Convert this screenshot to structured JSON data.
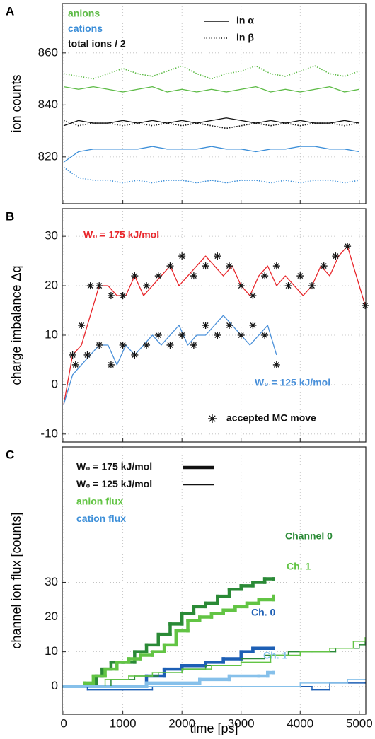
{
  "chart_data": [
    {
      "type": "line",
      "label": "A",
      "ylabel": "ion counts",
      "xlim": [
        -25,
        5110
      ],
      "ylim": [
        802,
        879
      ],
      "xticks": [
        0,
        1000,
        2000,
        3000,
        4000,
        5000
      ],
      "yticks": [
        820,
        840,
        860
      ],
      "show_xtick_labels": false,
      "grid": true,
      "x": [
        0,
        250,
        500,
        750,
        1000,
        1250,
        1500,
        1750,
        2000,
        2250,
        2500,
        2750,
        3000,
        3250,
        3500,
        3750,
        4000,
        4250,
        4500,
        4750,
        5000
      ],
      "series": [
        {
          "color": "#5dbb46",
          "style": "solid",
          "values": [
            847,
            846,
            847,
            846,
            845,
            846,
            847,
            845,
            846,
            845,
            846,
            845,
            846,
            847,
            845,
            846,
            845,
            846,
            847,
            845,
            846
          ]
        },
        {
          "color": "#5dbb46",
          "style": "dotted",
          "values": [
            852,
            851,
            850,
            852,
            854,
            852,
            851,
            853,
            855,
            852,
            850,
            852,
            853,
            855,
            852,
            851,
            853,
            855,
            852,
            851,
            853
          ]
        },
        {
          "color": "#3b8ed8",
          "style": "solid",
          "values": [
            818,
            822,
            823,
            823,
            823,
            823,
            824,
            823,
            823,
            823,
            824,
            823,
            823,
            822,
            823,
            823,
            824,
            824,
            823,
            823,
            822
          ]
        },
        {
          "color": "#3b8ed8",
          "style": "dotted",
          "values": [
            816,
            812,
            811,
            811,
            810,
            811,
            810,
            811,
            811,
            810,
            811,
            810,
            811,
            811,
            810,
            811,
            810,
            811,
            811,
            810,
            811
          ]
        },
        {
          "color": "#111111",
          "style": "solid",
          "values": [
            832,
            834,
            833,
            833,
            834,
            833,
            834,
            833,
            834,
            833,
            834,
            835,
            834,
            833,
            834,
            833,
            834,
            833,
            833,
            834,
            833
          ]
        },
        {
          "color": "#111111",
          "style": "dotted",
          "values": [
            834,
            832,
            833,
            833,
            832,
            833,
            832,
            833,
            832,
            833,
            832,
            831,
            832,
            833,
            832,
            833,
            832,
            833,
            833,
            832,
            833
          ]
        }
      ],
      "legend": [
        {
          "label": "anions",
          "color": "#5dbb46"
        },
        {
          "label": "cations",
          "color": "#3b8ed8"
        },
        {
          "label": "total ions / 2",
          "color": "#111111"
        }
      ],
      "style_legend": [
        {
          "label": "in α",
          "style": "solid"
        },
        {
          "label": "in β",
          "style": "dotted"
        }
      ]
    },
    {
      "type": "line",
      "label": "B",
      "ylabel": "charge imbalance Δq",
      "xlim": [
        -25,
        5110
      ],
      "ylim": [
        -11.6,
        35.6
      ],
      "xticks": [
        0,
        1000,
        2000,
        3000,
        4000,
        5000
      ],
      "yticks": [
        -10,
        0,
        10,
        20,
        30
      ],
      "show_xtick_labels": false,
      "grid": true,
      "series": [
        {
          "name": "W₀ = 175 kJ/mol",
          "color": "#e8262b",
          "style": "solid",
          "x": [
            0,
            150,
            300,
            450,
            600,
            750,
            900,
            1050,
            1200,
            1350,
            1500,
            1650,
            1800,
            1950,
            2100,
            2250,
            2400,
            2550,
            2700,
            2850,
            3000,
            3150,
            3300,
            3450,
            3600,
            3750,
            3900,
            4050,
            4200,
            4350,
            4500,
            4650,
            4800,
            4950,
            5100
          ],
          "values": [
            -4,
            6,
            8,
            14,
            20,
            20,
            18,
            18,
            22,
            18,
            20,
            22,
            24,
            20,
            22,
            24,
            26,
            24,
            22,
            24,
            20,
            18,
            22,
            24,
            20,
            22,
            20,
            18,
            20,
            24,
            22,
            26,
            28,
            22,
            16
          ]
        },
        {
          "name": "W₀ = 125 kJ/mol",
          "color": "#4a90d9",
          "style": "solid",
          "x": [
            0,
            150,
            300,
            450,
            600,
            750,
            900,
            1050,
            1200,
            1350,
            1500,
            1650,
            1800,
            1950,
            2100,
            2250,
            2400,
            2550,
            2700,
            2850,
            3000,
            3150,
            3300,
            3450,
            3600
          ],
          "values": [
            -4,
            2,
            4,
            6,
            8,
            8,
            4,
            8,
            6,
            8,
            10,
            8,
            10,
            12,
            8,
            10,
            10,
            12,
            14,
            12,
            10,
            8,
            10,
            12,
            6
          ]
        },
        {
          "name": "accepted MC move",
          "type": "scatter",
          "color": "#111111",
          "x": [
            150,
            300,
            450,
            600,
            800,
            1000,
            1200,
            1400,
            1600,
            1800,
            2000,
            2200,
            2400,
            2600,
            2800,
            3000,
            3200,
            3400,
            3600,
            3800,
            4000,
            4200,
            4400,
            4600,
            4800,
            5100,
            200,
            400,
            600,
            800,
            1000,
            1200,
            1400,
            1600,
            1800,
            2000,
            2200,
            2400,
            2600,
            2800,
            3000,
            3200,
            3400,
            3600
          ],
          "values": [
            6,
            12,
            20,
            20,
            18,
            18,
            22,
            20,
            22,
            24,
            26,
            22,
            24,
            26,
            24,
            20,
            18,
            22,
            24,
            20,
            22,
            20,
            24,
            26,
            28,
            16,
            4,
            6,
            8,
            4,
            8,
            6,
            8,
            10,
            8,
            10,
            8,
            12,
            10,
            12,
            10,
            12,
            10,
            4
          ]
        }
      ]
    },
    {
      "type": "line",
      "step": true,
      "label": "C",
      "ylabel": "channel ion flux [counts]",
      "xlabel": "time [ps]",
      "xlim": [
        -25,
        5110
      ],
      "ylim": [
        -8,
        69
      ],
      "xticks": [
        0,
        1000,
        2000,
        3000,
        4000,
        5000
      ],
      "yticks": [
        0,
        10,
        20,
        30
      ],
      "show_xtick_labels": true,
      "grid": true,
      "series": [
        {
          "color": "#2a8a36",
          "weight": "thick",
          "x": [
            0,
            400,
            550,
            650,
            800,
            1000,
            1200,
            1400,
            1600,
            1800,
            2000,
            2200,
            2400,
            2600,
            2800,
            3000,
            3200,
            3400,
            3550
          ],
          "values": [
            0,
            0,
            3,
            5,
            7,
            7,
            10,
            12,
            15,
            18,
            21,
            23,
            24,
            26,
            28,
            29,
            30,
            31,
            31
          ]
        },
        {
          "color": "#62c444",
          "weight": "thick",
          "x": [
            0,
            350,
            500,
            700,
            900,
            1100,
            1300,
            1500,
            1700,
            1900,
            2100,
            2300,
            2500,
            2700,
            2900,
            3100,
            3300,
            3550
          ],
          "values": [
            0,
            1,
            3,
            5,
            7,
            8,
            9,
            10,
            12,
            16,
            19,
            20,
            21,
            22,
            23,
            24,
            25,
            26
          ]
        },
        {
          "color": "#1d5fb5",
          "weight": "thick",
          "x": [
            0,
            1400,
            1700,
            2000,
            2400,
            2700,
            3000,
            3200,
            3550
          ],
          "values": [
            0,
            3,
            5,
            6,
            7,
            8,
            10,
            11,
            11
          ]
        },
        {
          "color": "#86c0ea",
          "weight": "thick",
          "x": [
            0,
            1400,
            2300,
            2800,
            3300,
            3450,
            3550
          ],
          "values": [
            0,
            1,
            2,
            3,
            3,
            4,
            4
          ]
        },
        {
          "color": "#2a8a36",
          "weight": "thin",
          "x": [
            0,
            500,
            800,
            1200,
            1600,
            2000,
            2400,
            3000,
            3400,
            3800,
            4200,
            4600,
            5000,
            5100
          ],
          "values": [
            0,
            0,
            2,
            3,
            4,
            5,
            6,
            8,
            9,
            10,
            10,
            11,
            12,
            13
          ]
        },
        {
          "color": "#62c444",
          "weight": "thin",
          "x": [
            0,
            300,
            700,
            1100,
            1500,
            2000,
            2500,
            3000,
            3500,
            4000,
            4500,
            4900,
            5100
          ],
          "values": [
            0,
            0,
            2,
            3,
            4,
            5,
            6,
            7,
            9,
            10,
            11,
            13,
            14
          ]
        },
        {
          "color": "#1d5fb5",
          "weight": "thin",
          "x": [
            0,
            400,
            1000,
            1500,
            2500,
            3000,
            4200,
            4500,
            5100
          ],
          "values": [
            0,
            -1,
            -1,
            0,
            0,
            0,
            -1,
            1,
            1
          ]
        },
        {
          "color": "#86c0ea",
          "weight": "thin",
          "x": [
            0,
            1000,
            1400,
            2200,
            3000,
            4000,
            4800,
            5100
          ],
          "values": [
            0,
            0,
            0,
            0,
            0,
            1,
            2,
            2
          ]
        }
      ],
      "legend": [
        {
          "label": "W₀ = 175 kJ/mol",
          "weight": "thick"
        },
        {
          "label": "W₀ = 125 kJ/mol",
          "weight": "thin"
        },
        {
          "label": "anion flux",
          "color": "#62c444"
        },
        {
          "label": "cation flux",
          "color": "#3b8ed8"
        }
      ],
      "annotations": [
        {
          "text": "Channel 0",
          "color": "#2a8a36"
        },
        {
          "text": "Ch. 1",
          "color": "#62c444"
        },
        {
          "text": "Ch. 0",
          "color": "#1d5fb5"
        },
        {
          "text": "Ch. 1",
          "color": "#86c0ea"
        }
      ]
    }
  ]
}
